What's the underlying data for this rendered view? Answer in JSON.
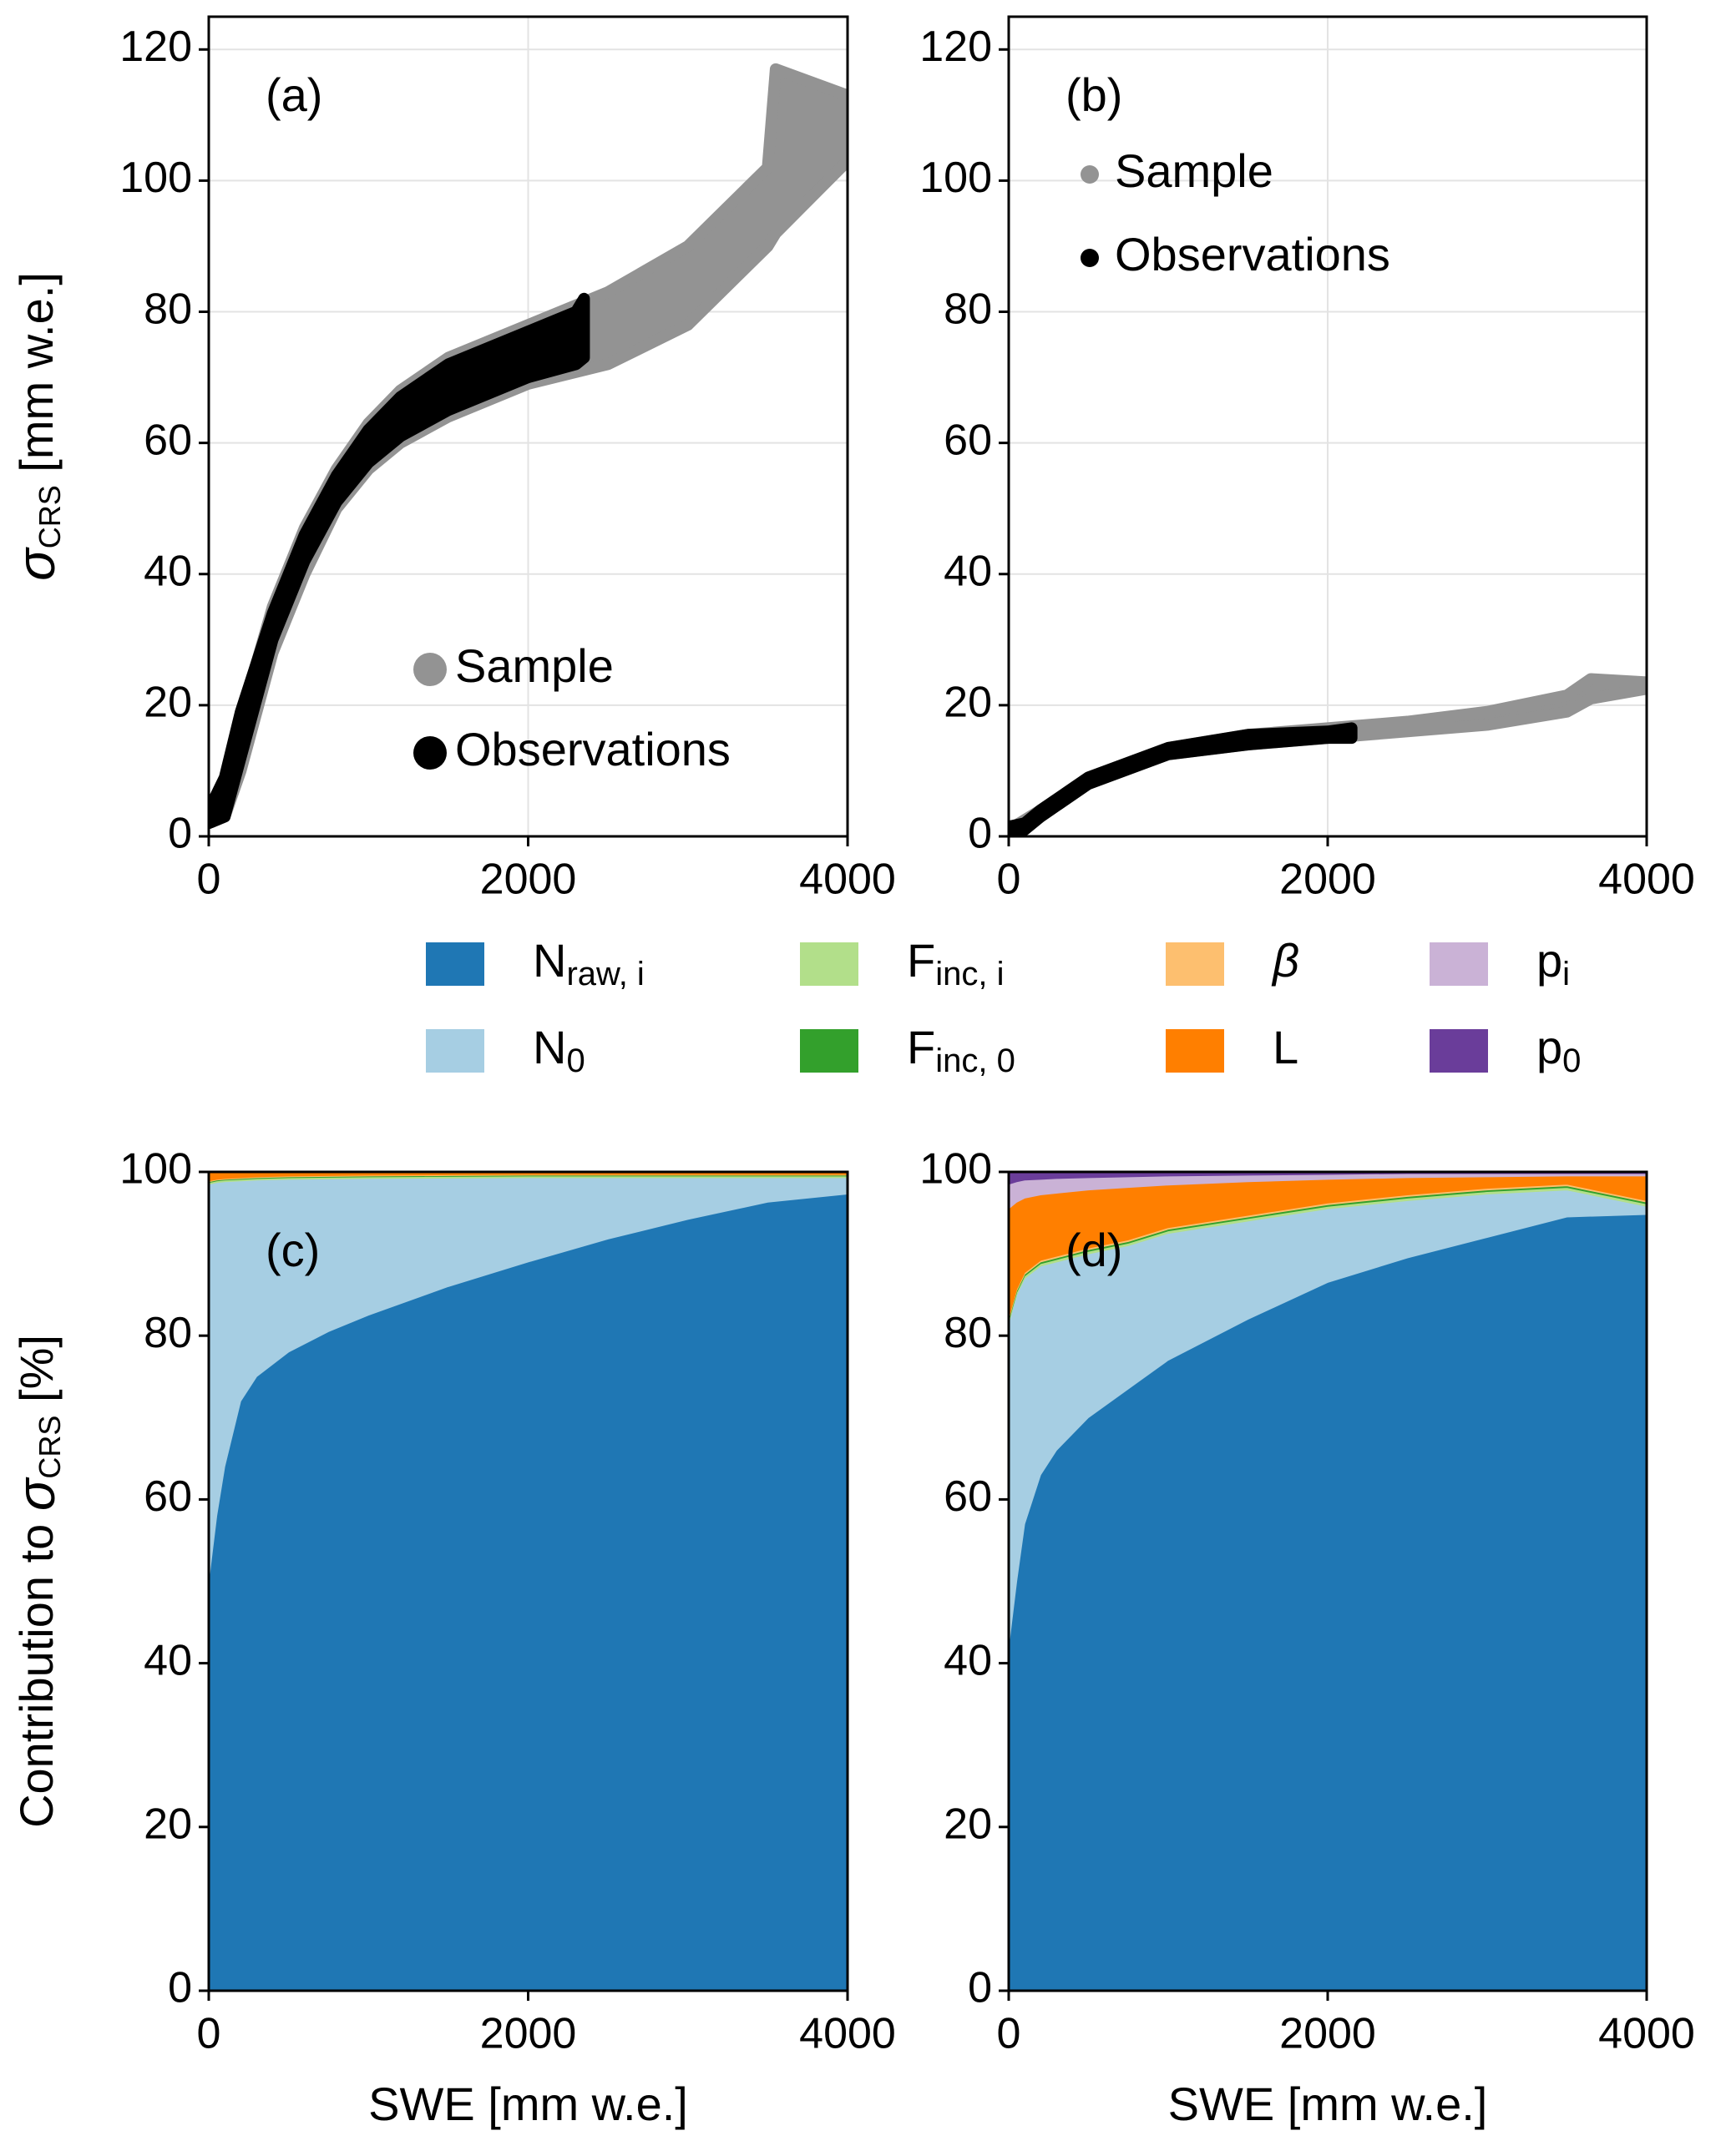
{
  "chart_data": [
    {
      "type": "scatter",
      "annotation": "(a)",
      "ylabel": [
        {
          "text": "σ",
          "italic": true
        },
        {
          "text": "CRS",
          "sub": true
        },
        {
          "text": " [mm w.e.]"
        }
      ],
      "xlim": [
        0,
        4000
      ],
      "xticks": [
        0,
        2000,
        4000
      ],
      "ylim": [
        0,
        125
      ],
      "yticks": [
        0,
        20,
        40,
        60,
        80,
        100,
        120
      ],
      "grid": true,
      "legend": "lower right",
      "series": [
        {
          "name": "Sample",
          "color": "#939393",
          "x": [
            0,
            100,
            200,
            400,
            600,
            800,
            1000,
            1200,
            1500,
            2000,
            2500,
            3000,
            3500,
            3550,
            4000
          ],
          "upper": [
            3,
            8,
            18,
            35,
            47,
            56,
            63,
            68,
            73,
            78,
            83,
            90,
            102,
            117,
            113
          ],
          "lower": [
            2,
            3,
            10,
            28,
            40,
            50,
            56,
            60,
            64,
            69,
            72,
            78,
            90,
            92,
            103
          ]
        },
        {
          "name": "Observations",
          "color": "#000000",
          "x": [
            0,
            100,
            200,
            400,
            600,
            800,
            1000,
            1200,
            1500,
            2000,
            2300,
            2350
          ],
          "upper": [
            4,
            9,
            19,
            34,
            46,
            55,
            62,
            67,
            72,
            77,
            80,
            82
          ],
          "lower": [
            2,
            3,
            12,
            30,
            42,
            51,
            57,
            61,
            65,
            70,
            72,
            73
          ]
        }
      ]
    },
    {
      "type": "scatter",
      "annotation": "(b)",
      "xlim": [
        0,
        4000
      ],
      "xticks": [
        0,
        2000,
        4000
      ],
      "ylim": [
        0,
        125
      ],
      "yticks": [
        0,
        20,
        40,
        60,
        80,
        100,
        120
      ],
      "grid": true,
      "legend": "upper left",
      "series": [
        {
          "name": "Sample",
          "color": "#939393",
          "x": [
            0,
            200,
            500,
            1000,
            1500,
            2000,
            2500,
            3000,
            3500,
            3650,
            4000
          ],
          "upper": [
            1,
            4,
            9,
            13.5,
            15.5,
            16.5,
            17.5,
            19,
            21.5,
            24,
            23.5
          ],
          "lower": [
            0,
            3,
            8,
            12.5,
            14,
            15,
            16,
            17,
            19,
            21,
            22.5
          ]
        },
        {
          "name": "Observations",
          "color": "#000000",
          "x": [
            0,
            100,
            200,
            500,
            1000,
            1500,
            2000,
            2150
          ],
          "upper": [
            1.5,
            2,
            4,
            9,
            13.5,
            15.5,
            16,
            16.5
          ],
          "lower": [
            0,
            1,
            3,
            8,
            12.5,
            14,
            15,
            15
          ]
        }
      ]
    },
    {
      "type": "stacked-area",
      "annotation": "(c)",
      "ylabel": [
        {
          "text": "Contribution to "
        },
        {
          "text": "σ",
          "italic": true
        },
        {
          "text": "CRS",
          "sub": true
        },
        {
          "text": " [%]"
        }
      ],
      "xlabel": "SWE [mm w.e.]",
      "xlim": [
        0,
        4000
      ],
      "xticks": [
        0,
        2000,
        4000
      ],
      "ylim": [
        0,
        100
      ],
      "yticks": [
        0,
        20,
        40,
        60,
        80,
        100
      ],
      "grid": true,
      "legend": "upper center",
      "x": [
        0,
        50,
        100,
        200,
        300,
        500,
        750,
        1000,
        1500,
        2000,
        2500,
        3000,
        3500,
        4000
      ],
      "series": [
        {
          "name": "N",
          "name_sub": "raw, i",
          "color": "#1f77b4",
          "values": [
            50,
            58,
            64,
            72,
            75,
            78,
            80.5,
            82.5,
            86,
            89,
            91.8,
            94.2,
            96.3,
            97.3
          ]
        },
        {
          "name": "N",
          "name_sub": "0",
          "color": "#a6cee3",
          "values": [
            48.5,
            40.7,
            34.8,
            26.9,
            24.0,
            21.1,
            18.65,
            16.7,
            13.25,
            10.3,
            7.5,
            5.1,
            3.0,
            2.0
          ]
        },
        {
          "name": "F",
          "name_sub": "inc, i",
          "color": "#b2df8a",
          "values": [
            0.2,
            0.2,
            0.2,
            0.2,
            0.2,
            0.2,
            0.2,
            0.2,
            0.2,
            0.2,
            0.2,
            0.2,
            0.2,
            0.2
          ]
        },
        {
          "name": "F",
          "name_sub": "inc, 0",
          "color": "#33a02c",
          "values": [
            0.1,
            0.1,
            0.1,
            0.1,
            0.1,
            0.1,
            0.1,
            0.1,
            0.1,
            0.1,
            0.1,
            0.1,
            0.1,
            0.1
          ]
        },
        {
          "name": "β",
          "color": "#fdbf6f",
          "values": [
            0.1,
            0.1,
            0.1,
            0.1,
            0.1,
            0.1,
            0.1,
            0.1,
            0.1,
            0.1,
            0.1,
            0.1,
            0.1,
            0.1
          ]
        },
        {
          "name": "L",
          "color": "#ff7f00",
          "values": [
            1.0,
            0.8,
            0.7,
            0.6,
            0.5,
            0.4,
            0.35,
            0.3,
            0.25,
            0.2,
            0.2,
            0.2,
            0.2,
            0.2
          ]
        },
        {
          "name": "p",
          "name_sub": "i",
          "color": "#cab2d6",
          "values": [
            0.05,
            0.05,
            0.05,
            0.05,
            0.05,
            0.05,
            0.05,
            0.05,
            0.05,
            0.05,
            0.05,
            0.05,
            0.05,
            0.05
          ]
        },
        {
          "name": "p",
          "name_sub": "0",
          "color": "#6a3d9a",
          "values": [
            0.05,
            0.05,
            0.05,
            0.05,
            0.05,
            0.05,
            0.05,
            0.05,
            0.05,
            0.05,
            0.05,
            0.05,
            0.05,
            0.05
          ]
        }
      ]
    },
    {
      "type": "stacked-area",
      "annotation": "(d)",
      "xlabel": "SWE [mm w.e.]",
      "xlim": [
        0,
        4000
      ],
      "xticks": [
        0,
        2000,
        4000
      ],
      "ylim": [
        0,
        100
      ],
      "yticks": [
        0,
        20,
        40,
        60,
        80,
        100
      ],
      "grid": true,
      "x": [
        0,
        50,
        100,
        200,
        300,
        500,
        750,
        1000,
        1500,
        2000,
        2500,
        3000,
        3500,
        4000
      ],
      "series": [
        {
          "color": "#1f77b4",
          "values": [
            42,
            50,
            57,
            63,
            66,
            70,
            73.5,
            77,
            82,
            86.5,
            89.5,
            92,
            94.5,
            94.8
          ]
        },
        {
          "color": "#a6cee3",
          "values": [
            39.5,
            35,
            30,
            25.5,
            23,
            20,
            17.5,
            15.5,
            12,
            9,
            7,
            5.3,
            3.3,
            1.0
          ]
        },
        {
          "color": "#b2df8a",
          "values": [
            0.3,
            0.3,
            0.3,
            0.3,
            0.3,
            0.3,
            0.3,
            0.3,
            0.3,
            0.3,
            0.3,
            0.3,
            0.3,
            0.3
          ]
        },
        {
          "color": "#33a02c",
          "values": [
            0.2,
            0.2,
            0.2,
            0.2,
            0.2,
            0.2,
            0.2,
            0.2,
            0.2,
            0.2,
            0.2,
            0.2,
            0.2,
            0.2
          ]
        },
        {
          "color": "#fdbf6f",
          "values": [
            0.2,
            0.2,
            0.2,
            0.2,
            0.2,
            0.2,
            0.2,
            0.2,
            0.2,
            0.2,
            0.2,
            0.2,
            0.2,
            0.2
          ]
        },
        {
          "color": "#ff7f00",
          "values": [
            13.3,
            10.6,
            9.1,
            8.0,
            7.7,
            7.1,
            6.4,
            5.2,
            4.1,
            2.9,
            2.1,
            1.4,
            1.0,
            3.0
          ]
        },
        {
          "color": "#cab2d6",
          "values": [
            3.0,
            2.5,
            2.2,
            1.9,
            1.8,
            1.5,
            1.3,
            1.1,
            0.8,
            0.6,
            0.5,
            0.4,
            0.3,
            0.3
          ]
        },
        {
          "color": "#6a3d9a",
          "values": [
            1.5,
            1.2,
            1.0,
            0.9,
            0.8,
            0.7,
            0.6,
            0.5,
            0.4,
            0.3,
            0.2,
            0.2,
            0.2,
            0.2
          ]
        }
      ]
    }
  ]
}
